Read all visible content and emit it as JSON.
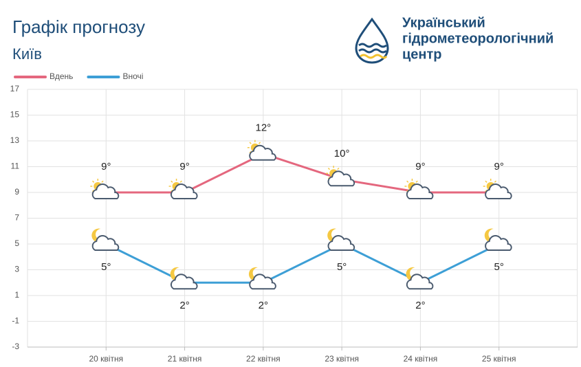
{
  "chart_data": {
    "type": "line",
    "title": "Графік прогнозу",
    "subtitle": "Київ",
    "categories": [
      "20 квітня",
      "21 квітня",
      "22 квітня",
      "23 квітня",
      "24 квітня",
      "25 квітня"
    ],
    "series": [
      {
        "name": "Вдень",
        "color": "#e4677e",
        "values": [
          9,
          9,
          12,
          10,
          9,
          9
        ],
        "value_labels": [
          "9°",
          "9°",
          "12°",
          "10°",
          "9°",
          "9°"
        ]
      },
      {
        "name": "Вночі",
        "color": "#3d9fd6",
        "values": [
          5,
          2,
          2,
          5,
          2,
          5
        ],
        "value_labels": [
          "5°",
          "2°",
          "2°",
          "5°",
          "2°",
          "5°"
        ]
      }
    ],
    "ylim": [
      -3,
      17
    ],
    "yticks": [
      -3,
      -1,
      1,
      3,
      5,
      7,
      9,
      11,
      13,
      15,
      17
    ],
    "grid": true,
    "legend": "top-left"
  },
  "logo": {
    "lines": [
      "Український",
      "гідрометеорологічний",
      "центр"
    ]
  }
}
